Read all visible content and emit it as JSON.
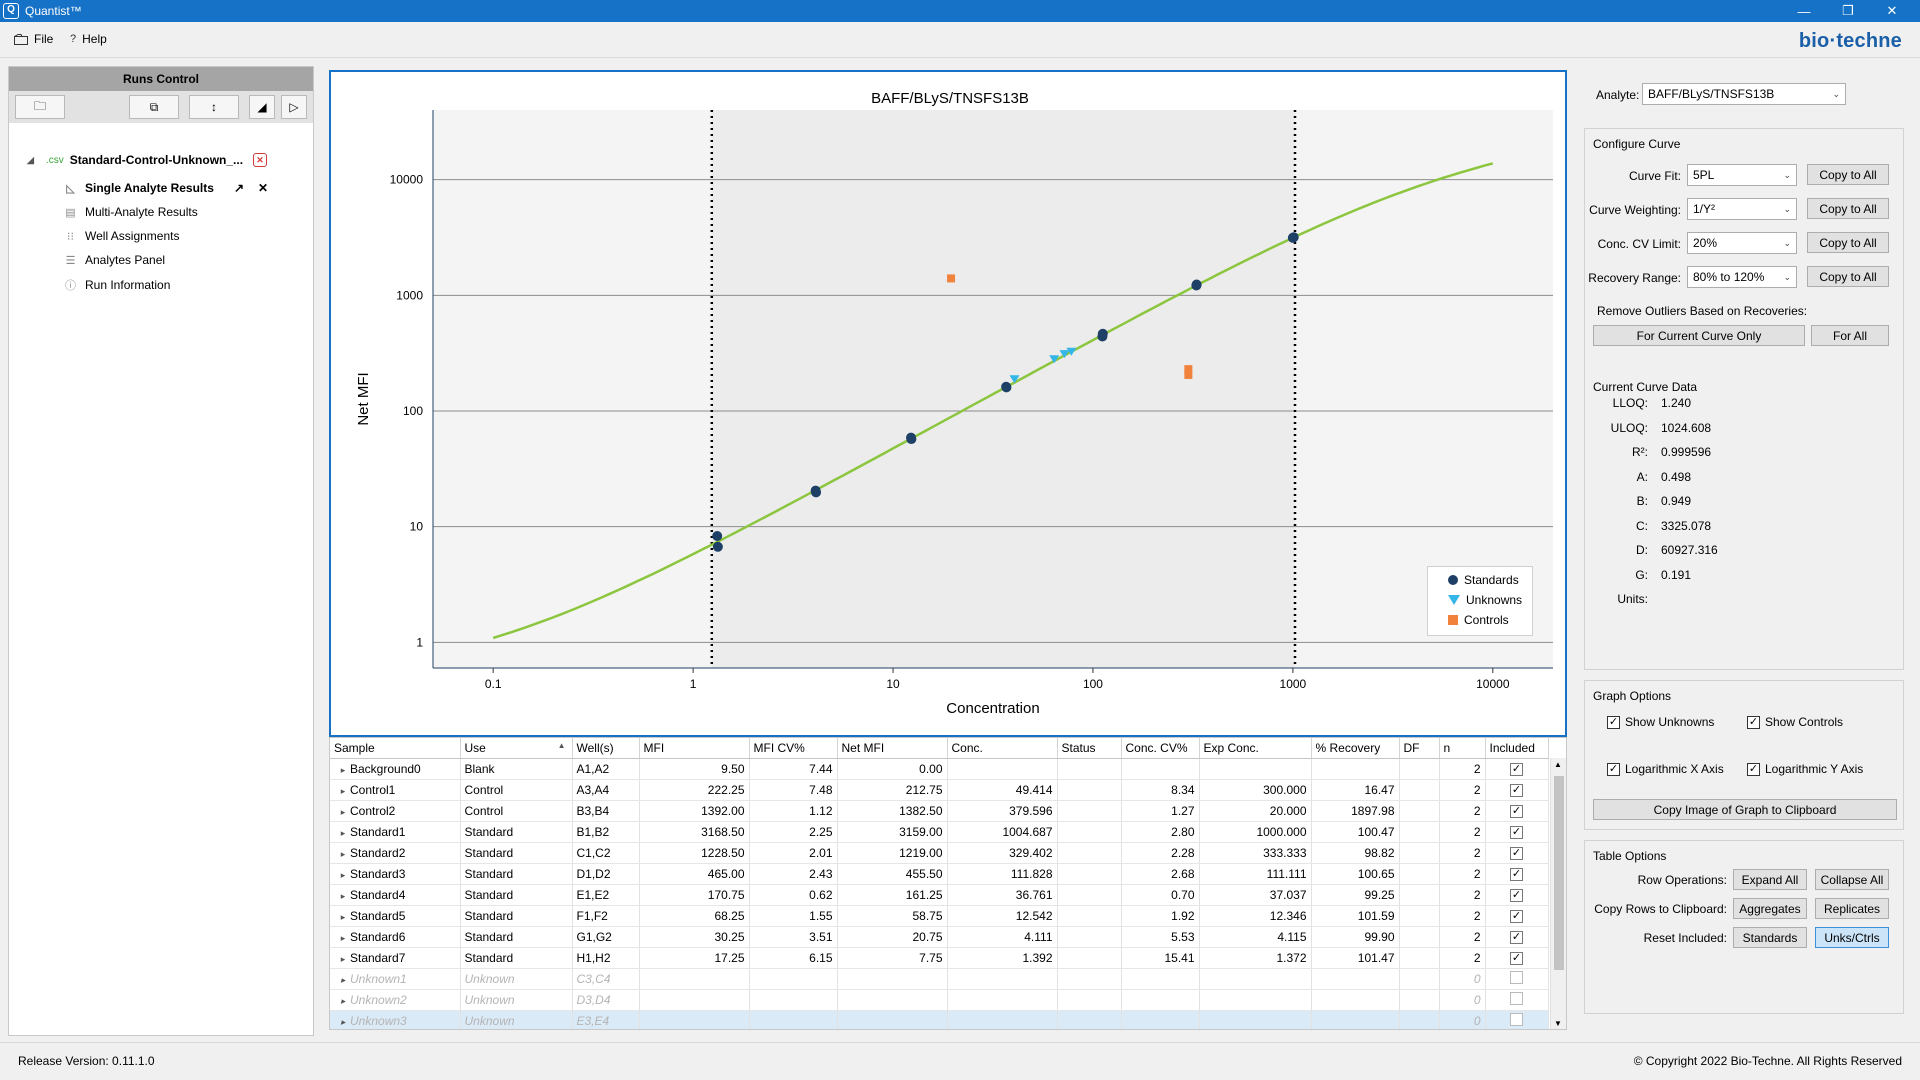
{
  "window": {
    "title": "Quantist™",
    "min": "—",
    "restore": "❐",
    "close": "✕"
  },
  "menu": {
    "file": "File",
    "help": "Help",
    "brand": "bio·techne"
  },
  "runs": {
    "header": "Runs Control",
    "run_name": "Standard-Control-Unknown_...",
    "run_badge": ".csv",
    "items": [
      {
        "label": "Single Analyte Results",
        "icon": "chart-icon"
      },
      {
        "label": "Multi-Analyte Results",
        "icon": "table-icon"
      },
      {
        "label": "Well Assignments",
        "icon": "grid-icon"
      },
      {
        "label": "Analytes Panel",
        "icon": "list-icon"
      },
      {
        "label": "Run Information",
        "icon": "info-icon"
      }
    ]
  },
  "chart_data": {
    "type": "scatter",
    "title": "BAFF/BLyS/TNSFS13B",
    "xlabel": "Concentration",
    "ylabel": "Net MFI",
    "xscale": "log",
    "yscale": "log",
    "xlim": [
      0.05,
      20000
    ],
    "ylim": [
      0.6,
      40000
    ],
    "xticks": [
      "0.1",
      "1",
      "10",
      "100",
      "1000",
      "10000"
    ],
    "yticks": [
      "1",
      "10",
      "100",
      "1000",
      "10000"
    ],
    "lloq": 1.24,
    "uloq": 1024.608,
    "legend_position": "bottom-right",
    "legend": [
      "Standards",
      "Unknowns",
      "Controls"
    ],
    "curve": {
      "A": 0.498,
      "B": 0.949,
      "C": 3325.078,
      "D": 60927.316,
      "G": 0.191,
      "x_range": [
        0.1,
        10000
      ]
    },
    "series": [
      {
        "name": "Standards",
        "marker": "circle",
        "color": "#1e3f66",
        "points": [
          [
            1.32,
            8.3
          ],
          [
            1.33,
            6.7
          ],
          [
            4.1,
            20.5
          ],
          [
            4.12,
            19.8
          ],
          [
            12.3,
            58.8
          ],
          [
            12.35,
            57.2
          ],
          [
            36.8,
            162
          ],
          [
            36.9,
            160
          ],
          [
            112,
            465
          ],
          [
            111.5,
            441
          ],
          [
            330,
            1240
          ],
          [
            329,
            1216
          ],
          [
            1010,
            3180
          ],
          [
            1000,
            3140
          ]
        ]
      },
      {
        "name": "Unknowns",
        "marker": "triangle",
        "color": "#35b6e8",
        "points": [
          [
            40.5,
            188
          ],
          [
            64,
            280
          ],
          [
            72,
            310
          ],
          [
            78,
            325
          ]
        ]
      },
      {
        "name": "Controls",
        "marker": "square",
        "color": "#f0823c",
        "points": [
          [
            19.5,
            1400
          ],
          [
            300,
            230
          ],
          [
            300,
            205
          ]
        ]
      }
    ]
  },
  "table": {
    "columns": [
      "Sample",
      "Use",
      "Well(s)",
      "MFI",
      "MFI CV%",
      "Net MFI",
      "Conc.",
      "Status",
      "Conc. CV%",
      "Exp Conc.",
      "% Recovery",
      "DF",
      "n",
      "Included"
    ],
    "sort_indicator": "▲",
    "rows": [
      [
        "Background0",
        "Blank",
        "A1,A2",
        "9.50",
        "7.44",
        "0.00",
        "",
        "",
        "",
        "",
        "",
        "",
        "2",
        "✓"
      ],
      [
        "Control1",
        "Control",
        "A3,A4",
        "222.25",
        "7.48",
        "212.75",
        "49.414",
        "",
        "8.34",
        "300.000",
        "16.47",
        "",
        "2",
        "✓"
      ],
      [
        "Control2",
        "Control",
        "B3,B4",
        "1392.00",
        "1.12",
        "1382.50",
        "379.596",
        "",
        "1.27",
        "20.000",
        "1897.98",
        "",
        "2",
        "✓"
      ],
      [
        "Standard1",
        "Standard",
        "B1,B2",
        "3168.50",
        "2.25",
        "3159.00",
        "1004.687",
        "",
        "2.80",
        "1000.000",
        "100.47",
        "",
        "2",
        "✓"
      ],
      [
        "Standard2",
        "Standard",
        "C1,C2",
        "1228.50",
        "2.01",
        "1219.00",
        "329.402",
        "",
        "2.28",
        "333.333",
        "98.82",
        "",
        "2",
        "✓"
      ],
      [
        "Standard3",
        "Standard",
        "D1,D2",
        "465.00",
        "2.43",
        "455.50",
        "111.828",
        "",
        "2.68",
        "111.111",
        "100.65",
        "",
        "2",
        "✓"
      ],
      [
        "Standard4",
        "Standard",
        "E1,E2",
        "170.75",
        "0.62",
        "161.25",
        "36.761",
        "",
        "0.70",
        "37.037",
        "99.25",
        "",
        "2",
        "✓"
      ],
      [
        "Standard5",
        "Standard",
        "F1,F2",
        "68.25",
        "1.55",
        "58.75",
        "12.542",
        "",
        "1.92",
        "12.346",
        "101.59",
        "",
        "2",
        "✓"
      ],
      [
        "Standard6",
        "Standard",
        "G1,G2",
        "30.25",
        "3.51",
        "20.75",
        "4.111",
        "",
        "5.53",
        "4.115",
        "99.90",
        "",
        "2",
        "✓"
      ],
      [
        "Standard7",
        "Standard",
        "H1,H2",
        "17.25",
        "6.15",
        "7.75",
        "1.392",
        "",
        "15.41",
        "1.372",
        "101.47",
        "",
        "2",
        "✓"
      ],
      [
        "Unknown1",
        "Unknown",
        "C3,C4",
        "",
        "",
        "",
        "",
        "",
        "",
        "",
        "",
        "",
        "0",
        ""
      ],
      [
        "Unknown2",
        "Unknown",
        "D3,D4",
        "",
        "",
        "",
        "",
        "",
        "",
        "",
        "",
        "",
        "0",
        ""
      ],
      [
        "Unknown3",
        "Unknown",
        "E3,E4",
        "",
        "",
        "",
        "",
        "",
        "",
        "",
        "",
        "",
        "0",
        ""
      ]
    ]
  },
  "side": {
    "analyte_label": "Analyte:",
    "analyte_value": "BAFF/BLyS/TNSFS13B",
    "configure_title": "Configure Curve",
    "curve_fit_label": "Curve Fit:",
    "curve_fit": "5PL",
    "weighting_label": "Curve Weighting:",
    "weighting": "1/Y²",
    "cv_label": "Conc. CV Limit:",
    "cv": "20%",
    "recovery_label": "Recovery Range:",
    "recovery": "80% to 120%",
    "copy_all": "Copy to All",
    "outliers_label": "Remove Outliers Based on Recoveries:",
    "current_only": "For Current Curve Only",
    "for_all": "For All",
    "curve_data_title": "Current Curve Data",
    "kv": [
      {
        "k": "LLOQ:",
        "v": "1.240"
      },
      {
        "k": "ULOQ:",
        "v": "1024.608"
      },
      {
        "k": "R²:",
        "v": "0.999596"
      },
      {
        "k": "A:",
        "v": "0.498"
      },
      {
        "k": "B:",
        "v": "0.949"
      },
      {
        "k": "C:",
        "v": "3325.078"
      },
      {
        "k": "D:",
        "v": "60927.316"
      },
      {
        "k": "G:",
        "v": "0.191"
      },
      {
        "k": "Units:",
        "v": ""
      }
    ],
    "graph_title": "Graph Options",
    "show_unknowns": "Show Unknowns",
    "show_controls": "Show Controls",
    "log_x": "Logarithmic X Axis",
    "log_y": "Logarithmic Y Axis",
    "copy_image": "Copy Image of Graph to Clipboard",
    "table_title": "Table Options",
    "row_ops_label": "Row Operations:",
    "expand_all": "Expand All",
    "collapse_all": "Collapse All",
    "copy_rows_label": "Copy Rows to Clipboard:",
    "aggregates": "Aggregates",
    "replicates": "Replicates",
    "reset_label": "Reset Included:",
    "standards": "Standards",
    "unks_ctrls": "Unks/Ctrls"
  },
  "status": {
    "release": "Release Version: 0.11.1.0",
    "copyright": "© Copyright 2022 Bio-Techne. All Rights Reserved"
  },
  "colors": {
    "accent": "#1672c6",
    "curve": "#8cc63f",
    "standards": "#1e3f66",
    "unknowns": "#35b6e8",
    "controls": "#f0823c"
  }
}
